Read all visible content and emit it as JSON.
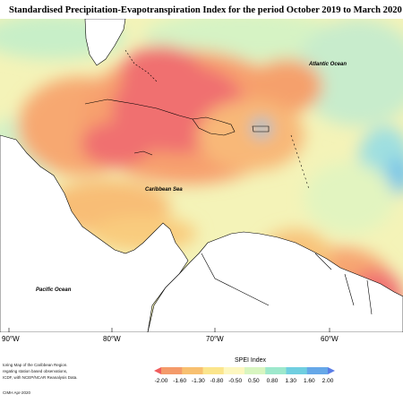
{
  "title": "Standardised Precipitation-Evapotranspiration Index for the period October 2019 to March 2020",
  "map_labels": {
    "atlantic": "Atlantic Ocean",
    "caribbean": "Caribbean Sea",
    "pacific": "Pacific Ocean"
  },
  "x_axis": {
    "ticks": [
      "90°W",
      "80°W",
      "70°W",
      "60°W"
    ]
  },
  "legend": {
    "title": "SPEI Index",
    "values": [
      "-2.00",
      "-1.60",
      "-1.30",
      "-0.80",
      "-0.50",
      "0.50",
      "0.80",
      "1.30",
      "1.60",
      "2.00"
    ],
    "colors": [
      "#f05d5d",
      "#f49a6a",
      "#f8c070",
      "#fbe58c",
      "#fdf7c0",
      "#d8f5c0",
      "#9de8cc",
      "#70cfe0",
      "#66a8e8",
      "#5a7de6"
    ]
  },
  "notes": {
    "line1": "toring Map of the Caribbean Region.",
    "line2": "regating station based observations,",
    "line3": "ICDF, with NCEP/NCAR Reanalysis Data.",
    "credit": "CIMH Apr-2020"
  }
}
